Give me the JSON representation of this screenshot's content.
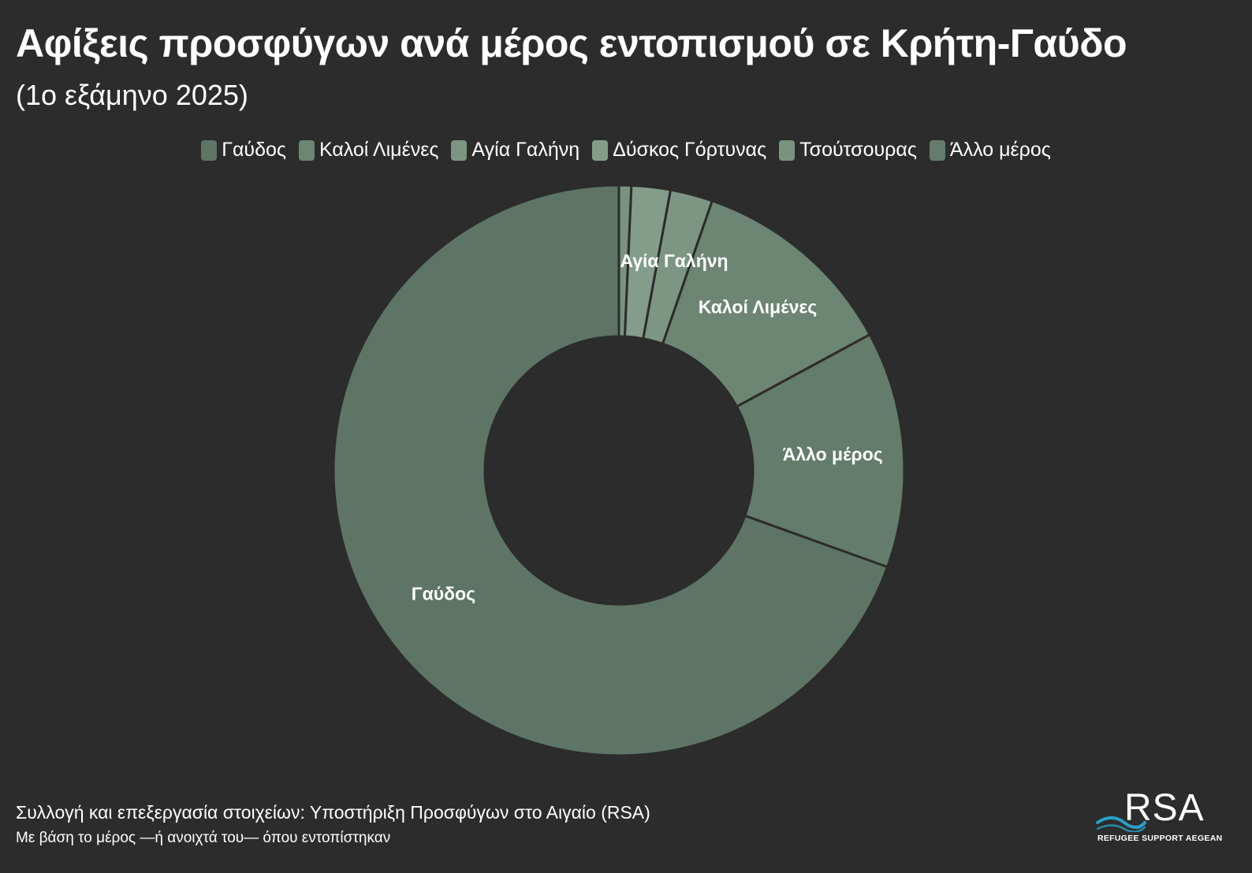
{
  "header": {
    "title": "Αφίξεις προσφύγων ανά μέρος εντοπισμού σε Κρήτη-Γαύδο",
    "subtitle": "(1ο εξάμηνο 2025)"
  },
  "footer": {
    "source": "Συλλογή και επεξεργασία στοιχείων: Υποστήριξη Προσφύγων στο Αιγαίο (RSA)",
    "note": "Με βάση το μέρος —ή ανοιχτά του— όπου εντοπίστηκαν",
    "logo_mark": "RSA",
    "logo_subtitle": "REFUGEE SUPPORT AEGEAN"
  },
  "colors": {
    "background": "#2c2c2c",
    "separator": "#2c2c2c",
    "logo_wave": "#2aa0c8"
  },
  "chart_data": {
    "type": "pie",
    "variant": "donut",
    "title": "Αφίξεις προσφύγων ανά μέρος εντοπισμού σε Κρήτη-Γαύδο",
    "subtitle": "(1ο εξάμηνο 2025)",
    "legend_position": "top-center",
    "units": "percent",
    "slices": [
      {
        "name": "Γαύδος",
        "value": 69.5,
        "color": "#5e7466",
        "label": "Γαύδος"
      },
      {
        "name": "Καλοί Λιμένες",
        "value": 11.8,
        "color": "#6d8573",
        "label": "Καλοί Λιμένες"
      },
      {
        "name": "Αγία Γαλήνη",
        "value": 2.4,
        "color": "#7d9683",
        "label": "Αγία Γαλήνη"
      },
      {
        "name": "Δύσκος Γόρτυνας",
        "value": 2.2,
        "color": "#849c8a",
        "label": ""
      },
      {
        "name": "Τσούτσουρας",
        "value": 0.7,
        "color": "#7a937f",
        "label": ""
      },
      {
        "name": "Άλλο μέρος",
        "value": 13.4,
        "color": "#647c6b",
        "label": "Άλλο μέρος"
      }
    ],
    "draw_order": [
      "Τσούτσουρας",
      "Δύσκος Γόρτυνας",
      "Αγία Γαλήνη",
      "Καλοί Λιμένες",
      "Άλλο μέρος",
      "Γαύδος"
    ]
  }
}
